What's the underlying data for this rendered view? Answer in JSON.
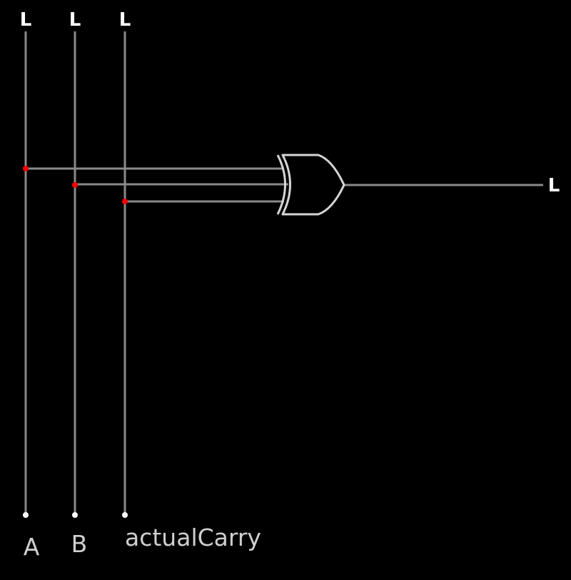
{
  "inputs": [
    {
      "name": "A",
      "state": "L"
    },
    {
      "name": "B",
      "state": "L"
    },
    {
      "name": "actualCarry",
      "state": "L"
    }
  ],
  "gate": {
    "type": "XOR"
  },
  "output": {
    "state": "L"
  },
  "colors": {
    "background": "#000000",
    "wire": "#8a8a8a",
    "gate_outline": "#d6d6d6",
    "junction": "#ff0000",
    "terminal": "#ffffff",
    "state_text": "#ffffff",
    "name_text": "#cfcfcf"
  }
}
